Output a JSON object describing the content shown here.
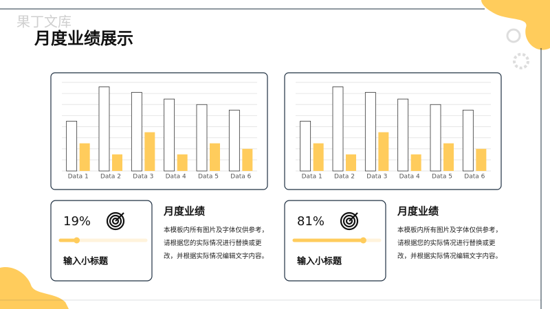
{
  "watermark": "果丁文库",
  "header": {
    "title": "月度业绩展示"
  },
  "chart_data": [
    {
      "type": "bar",
      "categories": [
        "Data 1",
        "Data 2",
        "Data 3",
        "Data 4",
        "Data 5",
        "Data 6"
      ],
      "series": [
        {
          "color": "#ffffff",
          "values": [
            4.5,
            7.6,
            7.1,
            6.5,
            6,
            5.5
          ]
        },
        {
          "color": "#ffcc5c",
          "values": [
            2.5,
            1.5,
            3.5,
            1.5,
            2.5,
            2
          ]
        }
      ],
      "ylim": [
        0,
        8
      ],
      "yticks": [
        0,
        1,
        2,
        3,
        4,
        5,
        6,
        7,
        8
      ],
      "grid": true
    },
    {
      "type": "bar",
      "categories": [
        "Data 1",
        "Data 2",
        "Data 3",
        "Data 4",
        "Data 5",
        "Data 6"
      ],
      "series": [
        {
          "color": "#ffffff",
          "values": [
            4.5,
            7.6,
            7.1,
            6.5,
            6,
            5.5
          ]
        },
        {
          "color": "#ffcc5c",
          "values": [
            2.5,
            1.5,
            3.5,
            1.5,
            2.5,
            2
          ]
        }
      ],
      "ylim": [
        0,
        8
      ],
      "yticks": [
        0,
        1,
        2,
        3,
        4,
        5,
        6,
        7,
        8
      ],
      "grid": true
    }
  ],
  "cards": [
    {
      "value": 19,
      "value_label": "19%",
      "subtitle": "输入小标题",
      "heading": "月度业绩",
      "body": "本模板内所有图片及字体仅供参考，请根据您的实际情况进行替换或更改，并根据实际情况编辑文字内容。"
    },
    {
      "value": 81,
      "value_label": "81%",
      "subtitle": "输入小标题",
      "heading": "月度业绩",
      "body": "本模板内所有图片及字体仅供参考，请根据您的实际情况进行替换或更改，并根据实际情况编辑文字内容。"
    }
  ]
}
